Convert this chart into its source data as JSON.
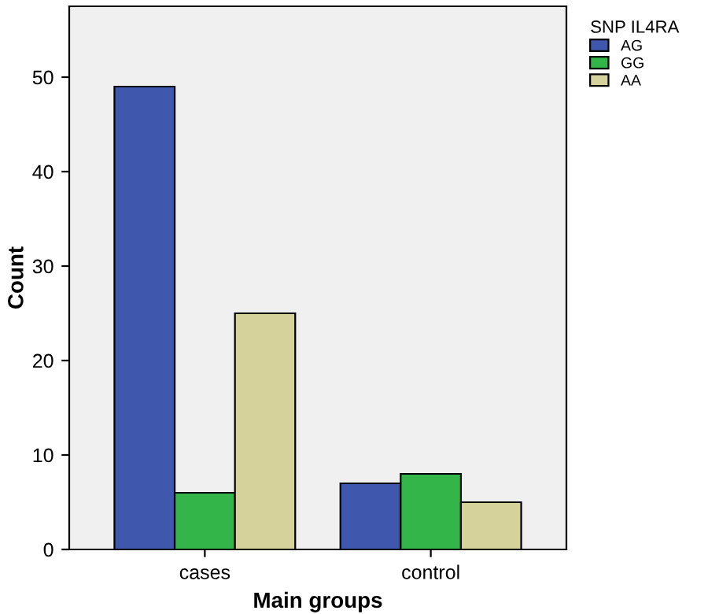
{
  "chart_data": {
    "type": "bar",
    "xlabel": "Main groups",
    "ylabel": "Count",
    "legend_title": "SNP IL4RA",
    "categories": [
      "cases",
      "control"
    ],
    "series": [
      {
        "name": "AG",
        "color": "#3f58ad",
        "values": [
          49,
          7
        ]
      },
      {
        "name": "GG",
        "color": "#33b54a",
        "values": [
          6,
          8
        ]
      },
      {
        "name": "AA",
        "color": "#d6d29c",
        "values": [
          25,
          5
        ]
      }
    ],
    "ylim": [
      0,
      57.5
    ],
    "yticks": [
      0,
      10,
      20,
      30,
      40,
      50
    ],
    "legend": "top right",
    "grid": false
  }
}
